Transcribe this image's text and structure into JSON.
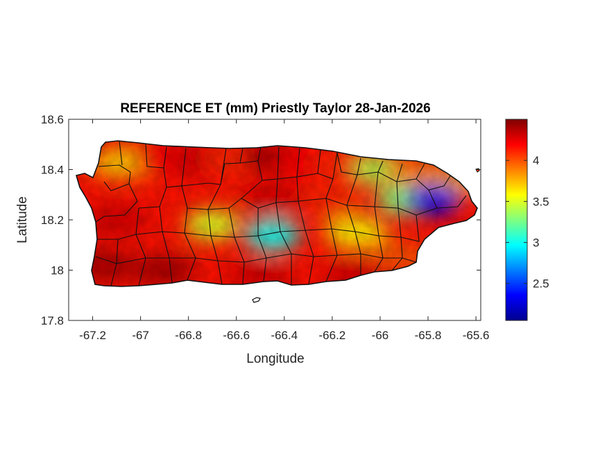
{
  "chart_data": {
    "type": "heatmap",
    "title": "REFERENCE ET (mm) Priestly Taylor 28-Jan-2026",
    "xlabel": "Longitude",
    "ylabel": "Latitude",
    "xlim": [
      -67.3,
      -65.58
    ],
    "ylim": [
      17.8,
      18.6
    ],
    "xticks": [
      -67.2,
      -67,
      -66.8,
      -66.6,
      -66.4,
      -66.2,
      -66,
      -65.8,
      -65.6
    ],
    "yticks": [
      17.8,
      18,
      18.2,
      18.4,
      18.6
    ],
    "colorbar": {
      "colormap": "jet",
      "range": [
        2.05,
        4.5
      ],
      "ticks": [
        2.5,
        3,
        3.5,
        4
      ]
    },
    "grid": false,
    "region": "Puerto Rico municipalities",
    "regions": [
      {
        "lon": -67.15,
        "lat": 18.42,
        "value": 4.1
      },
      {
        "lon": -67.05,
        "lat": 18.43,
        "value": 3.7
      },
      {
        "lon": -66.9,
        "lat": 18.44,
        "value": 4.2
      },
      {
        "lon": -66.75,
        "lat": 18.44,
        "value": 4.3
      },
      {
        "lon": -66.6,
        "lat": 18.44,
        "value": 4.1
      },
      {
        "lon": -66.45,
        "lat": 18.45,
        "value": 4.4
      },
      {
        "lon": -66.3,
        "lat": 18.43,
        "value": 4.2
      },
      {
        "lon": -66.15,
        "lat": 18.42,
        "value": 4.1
      },
      {
        "lon": -66.0,
        "lat": 18.4,
        "value": 3.4
      },
      {
        "lon": -65.85,
        "lat": 18.38,
        "value": 3.9
      },
      {
        "lon": -65.7,
        "lat": 18.35,
        "value": 3.8
      },
      {
        "lon": -66.45,
        "lat": 18.28,
        "value": 4.3
      },
      {
        "lon": -66.2,
        "lat": 18.28,
        "value": 4.1
      },
      {
        "lon": -65.9,
        "lat": 18.28,
        "value": 3.3
      },
      {
        "lon": -65.78,
        "lat": 18.28,
        "value": 2.3
      },
      {
        "lon": -66.1,
        "lat": 18.15,
        "value": 3.6
      },
      {
        "lon": -66.45,
        "lat": 18.14,
        "value": 3.0
      },
      {
        "lon": -66.7,
        "lat": 18.18,
        "value": 3.5
      },
      {
        "lon": -67.1,
        "lat": 18.2,
        "value": 4.3
      },
      {
        "lon": -67.15,
        "lat": 18.02,
        "value": 4.4
      },
      {
        "lon": -66.9,
        "lat": 18.0,
        "value": 4.4
      },
      {
        "lon": -66.5,
        "lat": 17.98,
        "value": 4.3
      },
      {
        "lon": -66.1,
        "lat": 17.98,
        "value": 4.3
      },
      {
        "lon": -65.9,
        "lat": 18.05,
        "value": 4.0
      }
    ]
  }
}
